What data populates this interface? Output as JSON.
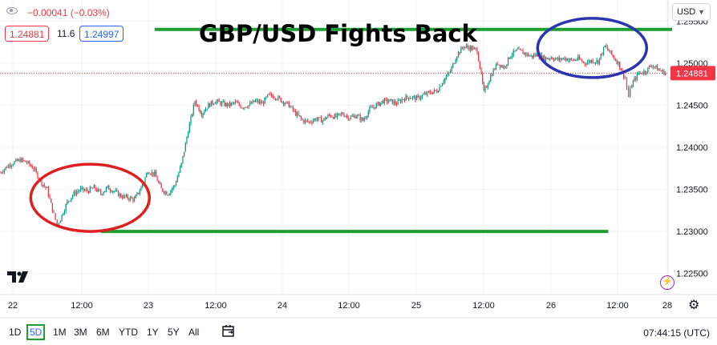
{
  "header": {
    "change": "−0.00041 (−0.03%)",
    "sell_price": "1.24881",
    "spread": "11.6",
    "buy_price": "1.24997",
    "title": "GBP/USD Fights Back",
    "currency": "USD"
  },
  "timeframes": [
    "1D",
    "5D",
    "1M",
    "3M",
    "6M",
    "YTD",
    "1Y",
    "5Y",
    "All"
  ],
  "active_timeframe": "5D",
  "clock": "07:44:15 (UTC)",
  "colors": {
    "candle_up": "#089981",
    "candle_down": "#f23645",
    "support_resistance": "#1e9e30",
    "circle_low": "#e01f1f",
    "circle_high": "#2b35b0",
    "last_price": "#f23645"
  },
  "chart_data": {
    "type": "line",
    "title": "GBP/USD Fights Back",
    "x_ticks": [
      "22",
      "12:00",
      "23",
      "12:00",
      "24",
      "12:00",
      "25",
      "12:00",
      "26",
      "12:00",
      "28"
    ],
    "y_ticks": [
      "1.25500",
      "1.25000",
      "1.24500",
      "1.24000",
      "1.23500",
      "1.23000",
      "1.22500"
    ],
    "ylim": [
      1.2225,
      1.2575
    ],
    "last_price_label": "1.24881",
    "last_price": 1.24881,
    "series": [
      {
        "x": [
          0,
          1.5,
          3,
          4,
          5,
          6,
          7,
          8,
          8.5,
          9,
          10,
          11,
          12,
          13,
          14,
          15,
          16,
          17,
          18,
          19,
          20,
          21,
          22,
          23,
          24,
          25,
          26,
          27,
          28,
          29,
          30,
          31,
          32,
          33,
          34,
          35,
          36,
          37,
          38,
          39,
          40,
          41,
          42,
          43,
          44,
          45,
          46,
          47,
          48,
          49,
          50,
          51,
          52,
          53,
          54,
          55,
          56,
          57,
          58,
          59,
          60,
          61,
          62,
          63,
          64,
          65,
          66,
          67,
          68,
          69,
          70,
          71,
          72,
          73,
          74,
          75,
          76,
          77,
          78,
          79,
          80,
          81,
          82,
          83,
          84,
          85,
          86,
          87,
          88,
          89,
          90,
          91,
          92,
          93,
          93.5,
          94,
          95,
          96,
          97,
          98,
          99
        ],
        "values": [
          1.237,
          1.238,
          1.2385,
          1.2382,
          1.2375,
          1.236,
          1.235,
          1.232,
          1.2308,
          1.2315,
          1.2335,
          1.2345,
          1.235,
          1.2348,
          1.2352,
          1.2345,
          1.2352,
          1.2348,
          1.2342,
          1.234,
          1.2338,
          1.2352,
          1.2372,
          1.2368,
          1.235,
          1.2345,
          1.2355,
          1.238,
          1.242,
          1.2455,
          1.244,
          1.245,
          1.2455,
          1.2452,
          1.245,
          1.2453,
          1.2448,
          1.245,
          1.2455,
          1.2452,
          1.2462,
          1.246,
          1.2455,
          1.245,
          1.244,
          1.2432,
          1.243,
          1.2434,
          1.2432,
          1.2438,
          1.2436,
          1.244,
          1.2435,
          1.2438,
          1.2432,
          1.2445,
          1.245,
          1.2455,
          1.2455,
          1.2452,
          1.2458,
          1.246,
          1.2458,
          1.2462,
          1.2465,
          1.2467,
          1.248,
          1.249,
          1.251,
          1.252,
          1.2518,
          1.2515,
          1.2465,
          1.2485,
          1.25,
          1.2495,
          1.251,
          1.2515,
          1.2512,
          1.2508,
          1.251,
          1.2505,
          1.2507,
          1.2504,
          1.2506,
          1.2503,
          1.2505,
          1.25,
          1.2503,
          1.2502,
          1.252,
          1.251,
          1.25,
          1.2482,
          1.246,
          1.2475,
          1.2488,
          1.249,
          1.2498,
          1.2492,
          1.2488
        ]
      }
    ],
    "annotations": {
      "resistance_level": 1.254,
      "support_level": 1.23
    }
  }
}
